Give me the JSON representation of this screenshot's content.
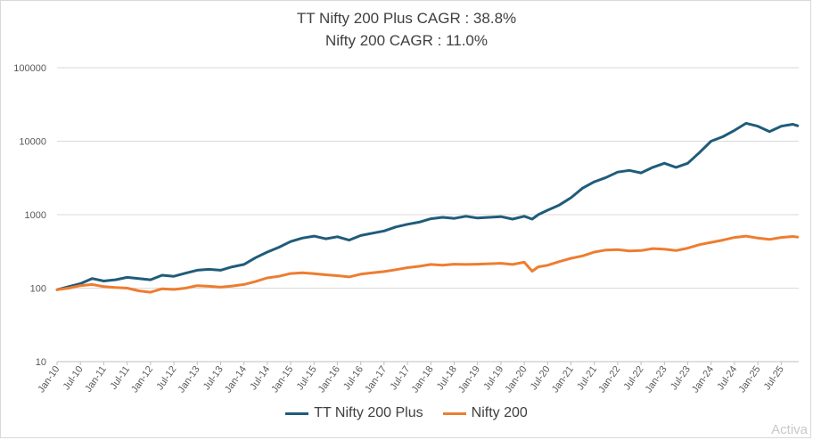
{
  "chart_data": {
    "type": "line",
    "title_lines": [
      "TT Nifty 200 Plus CAGR : 38.8%",
      "Nifty 200 CAGR : 11.0%"
    ],
    "y_scale": "log",
    "ylim": [
      10,
      100000
    ],
    "y_ticks": [
      "10",
      "100",
      "1000",
      "10000",
      "100000"
    ],
    "y_tick_values": [
      10,
      100,
      1000,
      10000,
      100000
    ],
    "grid": "horizontal",
    "legend_position": "bottom",
    "x_tick_labels": [
      "Jan-10",
      "Jul-10",
      "Jan-11",
      "Jul-11",
      "Jan-12",
      "Jul-12",
      "Jan-13",
      "Jul-13",
      "Jan-14",
      "Jul-14",
      "Jan-15",
      "Jul-15",
      "Jan-16",
      "Jul-16",
      "Jan-17",
      "Jul-17",
      "Jan-18",
      "Jul-18",
      "Jan-19",
      "Jul-19",
      "Jan-20",
      "Jul-20",
      "Jan-21",
      "Jul-21",
      "Jan-22",
      "Jul-22",
      "Jan-23",
      "Jul-23",
      "Jan-24",
      "Jul-24",
      "Jan-25",
      "Jul-25"
    ],
    "series": [
      {
        "name": "TT Nifty 200 Plus",
        "color": "#1f5c7a",
        "points": [
          [
            2010.0,
            95
          ],
          [
            2010.25,
            105
          ],
          [
            2010.5,
            115
          ],
          [
            2010.75,
            135
          ],
          [
            2011.0,
            125
          ],
          [
            2011.25,
            130
          ],
          [
            2011.5,
            140
          ],
          [
            2011.75,
            135
          ],
          [
            2012.0,
            130
          ],
          [
            2012.25,
            150
          ],
          [
            2012.5,
            145
          ],
          [
            2012.75,
            160
          ],
          [
            2013.0,
            175
          ],
          [
            2013.25,
            180
          ],
          [
            2013.5,
            175
          ],
          [
            2013.75,
            195
          ],
          [
            2014.0,
            210
          ],
          [
            2014.25,
            260
          ],
          [
            2014.5,
            310
          ],
          [
            2014.75,
            360
          ],
          [
            2015.0,
            430
          ],
          [
            2015.25,
            480
          ],
          [
            2015.5,
            510
          ],
          [
            2015.75,
            470
          ],
          [
            2016.0,
            500
          ],
          [
            2016.25,
            450
          ],
          [
            2016.5,
            520
          ],
          [
            2016.75,
            560
          ],
          [
            2017.0,
            600
          ],
          [
            2017.25,
            680
          ],
          [
            2017.5,
            740
          ],
          [
            2017.75,
            790
          ],
          [
            2018.0,
            880
          ],
          [
            2018.25,
            920
          ],
          [
            2018.5,
            890
          ],
          [
            2018.75,
            950
          ],
          [
            2019.0,
            900
          ],
          [
            2019.25,
            920
          ],
          [
            2019.5,
            940
          ],
          [
            2019.75,
            870
          ],
          [
            2020.0,
            950
          ],
          [
            2020.17,
            870
          ],
          [
            2020.3,
            1000
          ],
          [
            2020.5,
            1150
          ],
          [
            2020.75,
            1350
          ],
          [
            2021.0,
            1700
          ],
          [
            2021.25,
            2300
          ],
          [
            2021.5,
            2800
          ],
          [
            2021.75,
            3200
          ],
          [
            2022.0,
            3800
          ],
          [
            2022.25,
            4000
          ],
          [
            2022.5,
            3700
          ],
          [
            2022.75,
            4400
          ],
          [
            2023.0,
            5000
          ],
          [
            2023.25,
            4400
          ],
          [
            2023.5,
            5000
          ],
          [
            2023.75,
            7000
          ],
          [
            2024.0,
            10000
          ],
          [
            2024.25,
            11500
          ],
          [
            2024.5,
            14000
          ],
          [
            2024.75,
            17500
          ],
          [
            2025.0,
            16000
          ],
          [
            2025.25,
            13500
          ],
          [
            2025.5,
            16000
          ],
          [
            2025.75,
            17000
          ],
          [
            2025.85,
            16200
          ]
        ]
      },
      {
        "name": "Nifty 200",
        "color": "#ed7d31",
        "points": [
          [
            2010.0,
            95
          ],
          [
            2010.25,
            100
          ],
          [
            2010.5,
            108
          ],
          [
            2010.75,
            112
          ],
          [
            2011.0,
            105
          ],
          [
            2011.25,
            102
          ],
          [
            2011.5,
            100
          ],
          [
            2011.75,
            92
          ],
          [
            2012.0,
            88
          ],
          [
            2012.25,
            98
          ],
          [
            2012.5,
            96
          ],
          [
            2012.75,
            100
          ],
          [
            2013.0,
            108
          ],
          [
            2013.25,
            106
          ],
          [
            2013.5,
            103
          ],
          [
            2013.75,
            107
          ],
          [
            2014.0,
            112
          ],
          [
            2014.25,
            123
          ],
          [
            2014.5,
            138
          ],
          [
            2014.75,
            145
          ],
          [
            2015.0,
            158
          ],
          [
            2015.25,
            162
          ],
          [
            2015.5,
            157
          ],
          [
            2015.75,
            152
          ],
          [
            2016.0,
            148
          ],
          [
            2016.25,
            142
          ],
          [
            2016.5,
            155
          ],
          [
            2016.75,
            162
          ],
          [
            2017.0,
            168
          ],
          [
            2017.25,
            178
          ],
          [
            2017.5,
            190
          ],
          [
            2017.75,
            198
          ],
          [
            2018.0,
            210
          ],
          [
            2018.25,
            205
          ],
          [
            2018.5,
            212
          ],
          [
            2018.75,
            210
          ],
          [
            2019.0,
            212
          ],
          [
            2019.25,
            215
          ],
          [
            2019.5,
            218
          ],
          [
            2019.75,
            210
          ],
          [
            2020.0,
            225
          ],
          [
            2020.17,
            170
          ],
          [
            2020.3,
            195
          ],
          [
            2020.5,
            205
          ],
          [
            2020.75,
            230
          ],
          [
            2021.0,
            255
          ],
          [
            2021.25,
            275
          ],
          [
            2021.5,
            310
          ],
          [
            2021.75,
            330
          ],
          [
            2022.0,
            335
          ],
          [
            2022.25,
            320
          ],
          [
            2022.5,
            325
          ],
          [
            2022.75,
            345
          ],
          [
            2023.0,
            340
          ],
          [
            2023.25,
            325
          ],
          [
            2023.5,
            350
          ],
          [
            2023.75,
            390
          ],
          [
            2024.0,
            420
          ],
          [
            2024.25,
            450
          ],
          [
            2024.5,
            490
          ],
          [
            2024.75,
            510
          ],
          [
            2025.0,
            480
          ],
          [
            2025.25,
            460
          ],
          [
            2025.5,
            490
          ],
          [
            2025.75,
            505
          ],
          [
            2025.85,
            495
          ]
        ]
      }
    ]
  },
  "watermark": "Activa"
}
